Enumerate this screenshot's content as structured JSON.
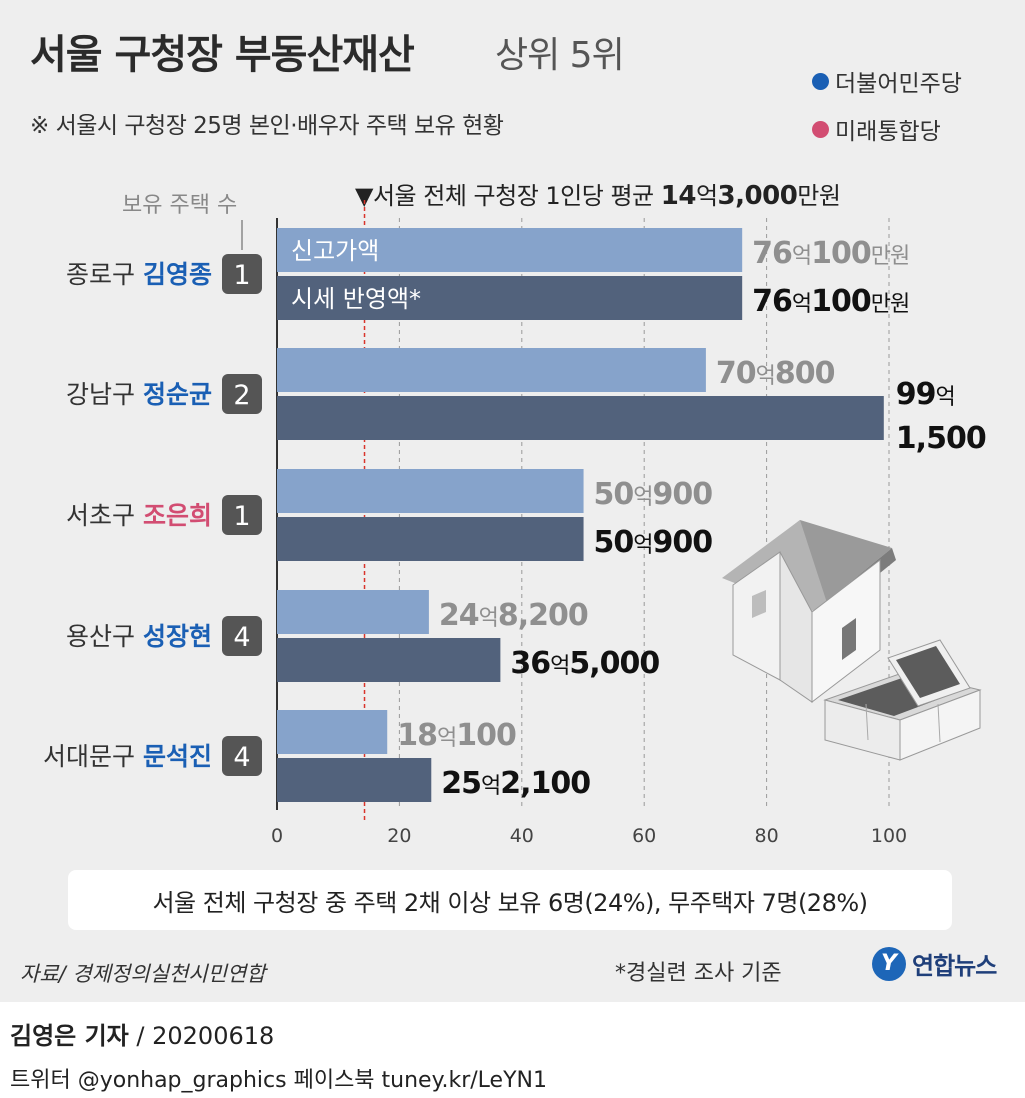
{
  "title": {
    "main": "서울 구청장 부동산재산",
    "sub": "상위 5위"
  },
  "subtitle": "※ 서울시 구청장 25명 본인·배우자 주택 보유 현황",
  "legend": [
    {
      "label": "더불어민주당",
      "color": "#1a5fb4"
    },
    {
      "label": "미래통합당",
      "color": "#d24d72"
    }
  ],
  "colors": {
    "declared": "#86a3cb",
    "market": "#52627c",
    "axis": "#333333"
  },
  "chart_data": {
    "type": "bar",
    "orientation": "horizontal",
    "count_header": "보유 주택 수",
    "categories": [
      "종로구 김영종",
      "강남구 정순균",
      "서초구 조은희",
      "용산구 성장현",
      "서대문구 문석진"
    ],
    "rows": [
      {
        "district": "종로구",
        "name": "김영종",
        "party_color": "#1a5fb4",
        "count": "1",
        "declared": 76.01,
        "market": 76.01,
        "declared_label": {
          "a": "76",
          "u": "억",
          "b": "100",
          "c": "만원"
        },
        "market_label": {
          "a": "76",
          "u": "억",
          "b": "100",
          "c": "만원"
        }
      },
      {
        "district": "강남구",
        "name": "정순균",
        "party_color": "#1a5fb4",
        "count": "2",
        "declared": 70.08,
        "market": 99.15,
        "declared_label": {
          "a": "70",
          "u": "억",
          "b": "800",
          "c": ""
        },
        "market_label": {
          "a": "99",
          "u": "억",
          "b": "1,500",
          "c": ""
        }
      },
      {
        "district": "서초구",
        "name": "조은희",
        "party_color": "#d24d72",
        "count": "1",
        "declared": 50.09,
        "market": 50.09,
        "declared_label": {
          "a": "50",
          "u": "억",
          "b": "900",
          "c": ""
        },
        "market_label": {
          "a": "50",
          "u": "억",
          "b": "900",
          "c": ""
        }
      },
      {
        "district": "용산구",
        "name": "성장현",
        "party_color": "#1a5fb4",
        "count": "4",
        "declared": 24.82,
        "market": 36.5,
        "declared_label": {
          "a": "24",
          "u": "억",
          "b": "8,200",
          "c": ""
        },
        "market_label": {
          "a": "36",
          "u": "억",
          "b": "5,000",
          "c": ""
        }
      },
      {
        "district": "서대문구",
        "name": "문석진",
        "party_color": "#1a5fb4",
        "count": "4",
        "declared": 18.01,
        "market": 25.21,
        "declared_label": {
          "a": "18",
          "u": "억",
          "b": "100",
          "c": ""
        },
        "market_label": {
          "a": "25",
          "u": "억",
          "b": "2,100",
          "c": ""
        }
      }
    ],
    "series": [
      {
        "name": "신고가액",
        "values": [
          76.01,
          70.08,
          50.09,
          24.82,
          18.01
        ]
      },
      {
        "name": "시세 반영액*",
        "values": [
          76.01,
          99.15,
          50.09,
          36.5,
          25.21
        ]
      }
    ],
    "x_ticks": [
      "0",
      "20",
      "40",
      "60",
      "80",
      "100"
    ],
    "xlim": [
      0,
      100
    ],
    "average": {
      "value": 14.3,
      "label_prefix": "▼서울 전체 구청장 1인당 평균",
      "label_a": "14",
      "label_u": "억",
      "label_b": "3,000",
      "label_c": "만원"
    },
    "grid": true
  },
  "summary": "서울 전체 구청장 중 주택 2채 이상 보유 6명(24%), 무주택자 7명(28%)",
  "source": "자료/ 경제정의실천시민연합",
  "footnote": "*경실련 조사 기준",
  "logo": {
    "mark": "Y",
    "text": "연합뉴스"
  },
  "reporter": {
    "name": "김영은 기자",
    "date": "/ 20200618"
  },
  "social": "트위터 @yonhap_graphics  페이스북 tuney.kr/LeYN1",
  "icons": [
    "house-icon",
    "money-stack-icon"
  ]
}
